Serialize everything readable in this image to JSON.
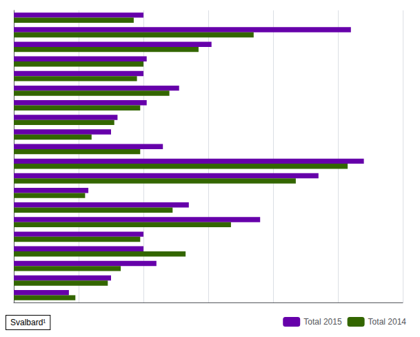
{
  "chart_data": {
    "type": "bar",
    "orientation": "horizontal",
    "categories": [
      null,
      null,
      null,
      null,
      null,
      null,
      null,
      null,
      null,
      null,
      null,
      null,
      null,
      null,
      null,
      null,
      null,
      null,
      null,
      null
    ],
    "series": [
      {
        "name": "Total 2015",
        "color": "#6600aa",
        "values": [
          200,
          520,
          305,
          205,
          200,
          255,
          205,
          160,
          150,
          230,
          540,
          470,
          115,
          270,
          380,
          200,
          200,
          220,
          150,
          85
        ]
      },
      {
        "name": "Total 2014",
        "color": "#336600",
        "values": [
          185,
          370,
          285,
          200,
          190,
          240,
          195,
          155,
          120,
          195,
          515,
          435,
          110,
          245,
          335,
          195,
          265,
          165,
          145,
          95
        ]
      }
    ],
    "xlim": [
      0,
      600
    ],
    "xticks": [
      0,
      100,
      200,
      300,
      400,
      500,
      600
    ],
    "grid": true,
    "legend": "lower right",
    "tick_labels": false,
    "annotation": "Svalbard¹"
  }
}
